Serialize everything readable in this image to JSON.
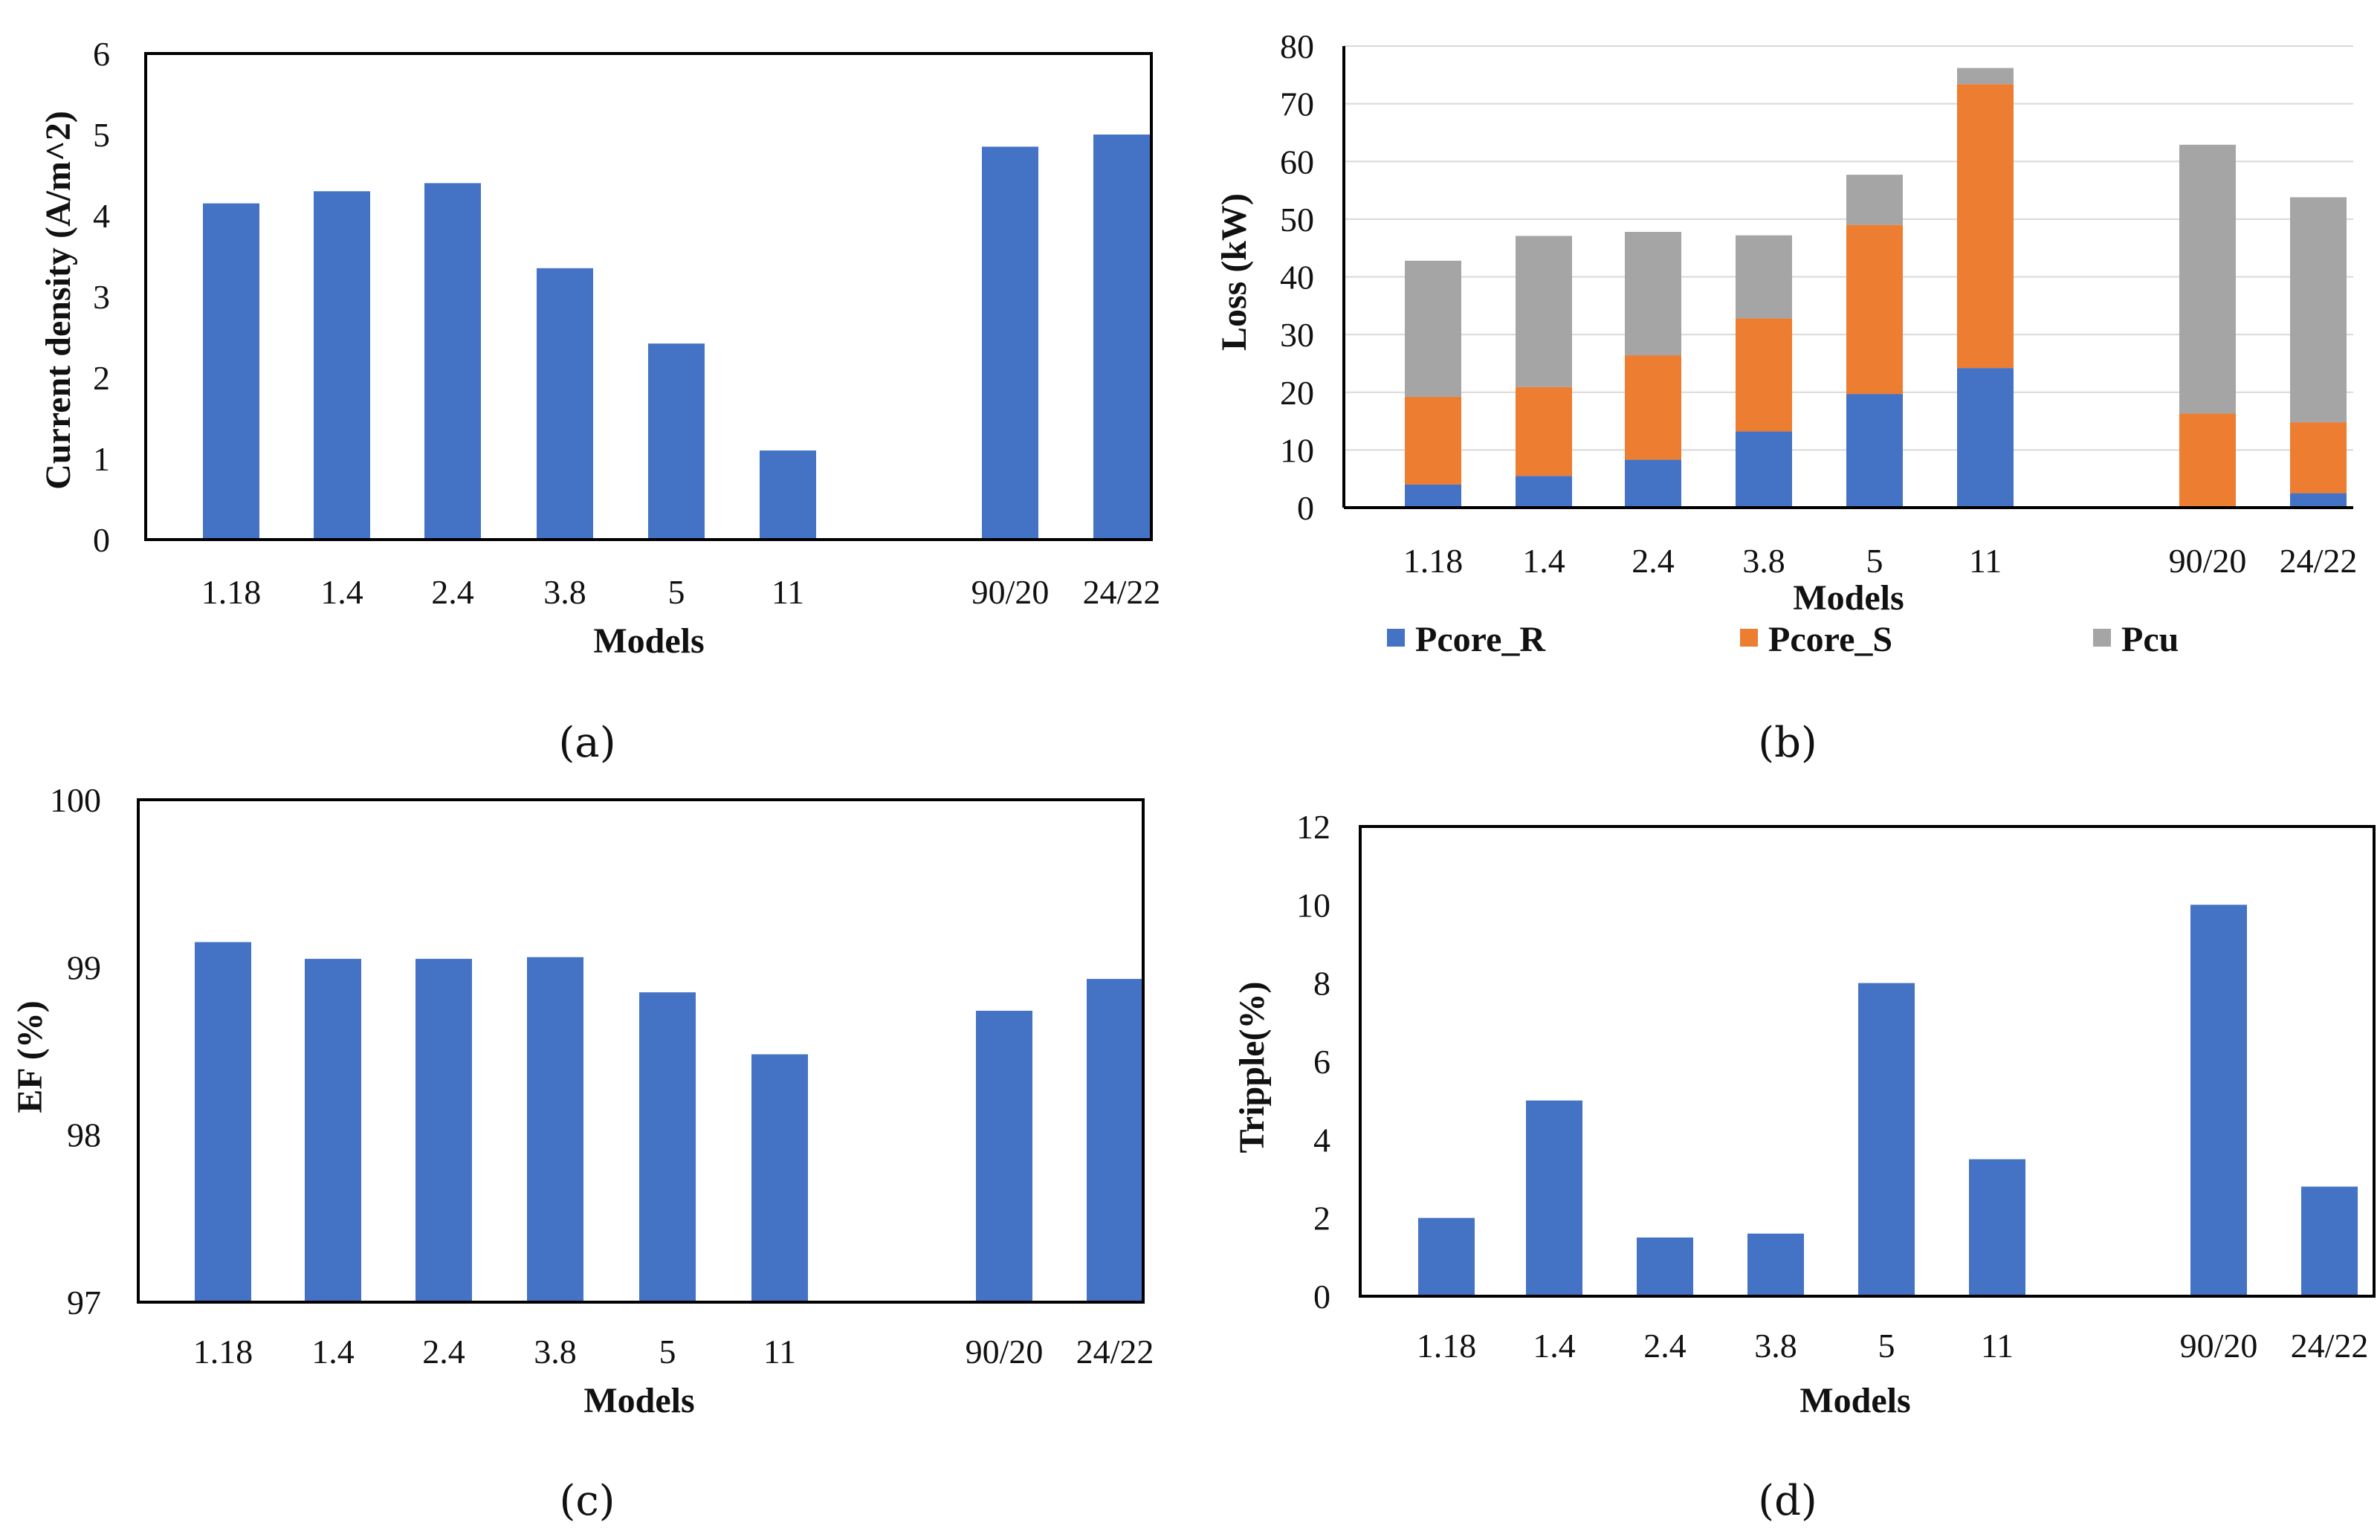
{
  "colors": {
    "blue": "#4472C4",
    "orange": "#ED7D31",
    "gray": "#A5A5A5"
  },
  "chart_data": [
    {
      "id": "a",
      "type": "bar",
      "panel_label": "(a)",
      "xlabel": "Models",
      "ylabel": "Current density (A/m^2)",
      "categories": [
        "1.18",
        "1.4",
        "2.4",
        "3.8",
        "5",
        "11",
        "90/20",
        "24/22"
      ],
      "values": [
        4.15,
        4.3,
        4.4,
        3.35,
        2.42,
        1.1,
        4.85,
        5.0
      ],
      "ylim": [
        0,
        6
      ],
      "yticks": [
        "0",
        "1",
        "2",
        "3",
        "4",
        "5",
        "6"
      ],
      "grid": false
    },
    {
      "id": "b",
      "type": "bar",
      "stacked": true,
      "panel_label": "(b)",
      "xlabel": "Models",
      "ylabel": "Loss (kW)",
      "categories": [
        "1.18",
        "1.4",
        "2.4",
        "3.8",
        "5",
        "11",
        "90/20",
        "24/22"
      ],
      "series": [
        {
          "name": "Pcore_R",
          "values": [
            4,
            5.5,
            8.3,
            13.2,
            19.7,
            24.2,
            0,
            2.5
          ]
        },
        {
          "name": "Pcore_S",
          "values": [
            15.2,
            15.4,
            18.1,
            19.6,
            29.3,
            49.2,
            16.3,
            12.3
          ]
        },
        {
          "name": "Pcu",
          "values": [
            23.6,
            26.2,
            21.4,
            14.4,
            8.7,
            2.8,
            46.6,
            39.0
          ]
        }
      ],
      "ylim": [
        0,
        80
      ],
      "yticks": [
        "0",
        "10",
        "20",
        "30",
        "40",
        "50",
        "60",
        "70",
        "80"
      ],
      "grid": true,
      "legend": "bottom"
    },
    {
      "id": "c",
      "type": "bar",
      "panel_label": "(c)",
      "xlabel": "Models",
      "ylabel": "EF (%)",
      "categories": [
        "1.18",
        "1.4",
        "2.4",
        "3.8",
        "5",
        "11",
        "90/20",
        "24/22"
      ],
      "values": [
        99.15,
        99.05,
        99.05,
        99.06,
        98.85,
        98.48,
        98.74,
        98.93
      ],
      "ylim": [
        97,
        100
      ],
      "yticks": [
        "97",
        "98",
        "99",
        "100"
      ],
      "grid": false
    },
    {
      "id": "d",
      "type": "bar",
      "panel_label": "(d)",
      "xlabel": "Models",
      "ylabel": "Tripple(%)",
      "categories": [
        "1.18",
        "1.4",
        "2.4",
        "3.8",
        "5",
        "11",
        "90/20",
        "24/22"
      ],
      "values": [
        2,
        5,
        1.5,
        1.6,
        8,
        3.5,
        10,
        2.8
      ],
      "ylim": [
        0,
        12
      ],
      "yticks": [
        "0",
        "2",
        "4",
        "6",
        "8",
        "10",
        "12"
      ],
      "grid": false
    }
  ]
}
